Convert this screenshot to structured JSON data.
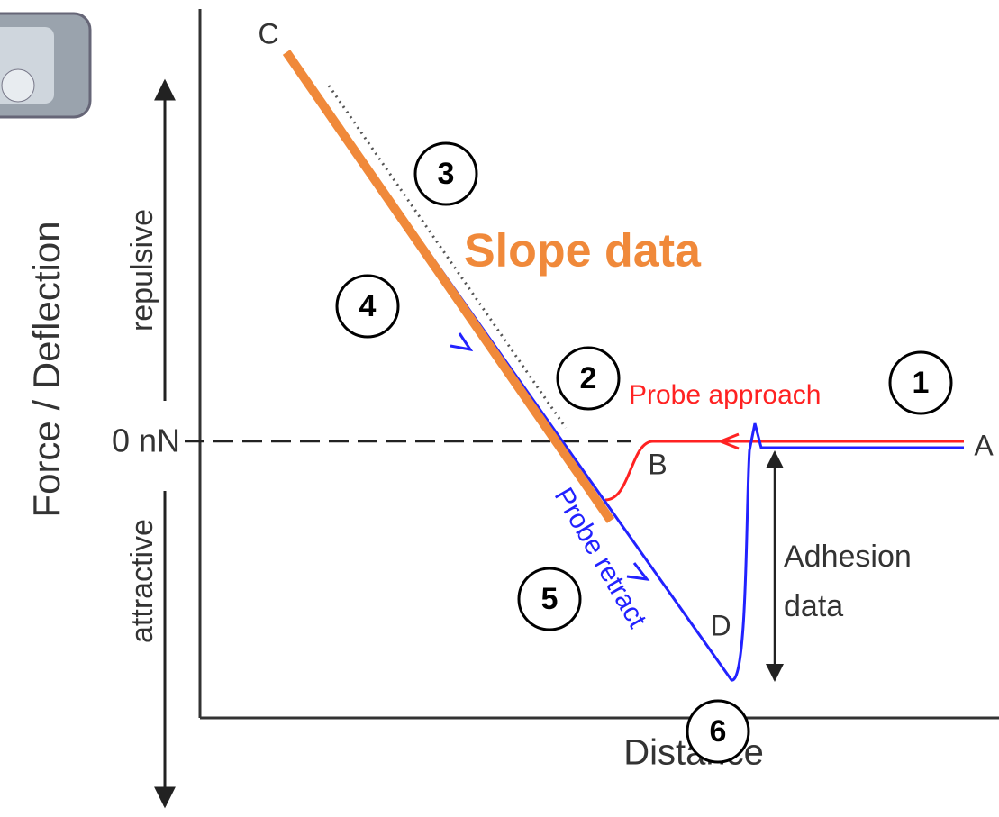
{
  "diagram": {
    "y_axis_label": "Force / Deflection",
    "repulsive_label": "repulsive",
    "attractive_label": "attractive",
    "zero_label": "0 nN",
    "x_axis_label": "Distance",
    "points": {
      "a": "A",
      "b": "B",
      "c": "C",
      "d": "D"
    },
    "approach_label": "Probe approach",
    "retract_label": "Probe retract",
    "adhesion_label": [
      "Adhesion",
      "data"
    ],
    "slope_label": "Slope data",
    "steps": [
      "1",
      "2",
      "3",
      "4",
      "5",
      "6"
    ]
  }
}
